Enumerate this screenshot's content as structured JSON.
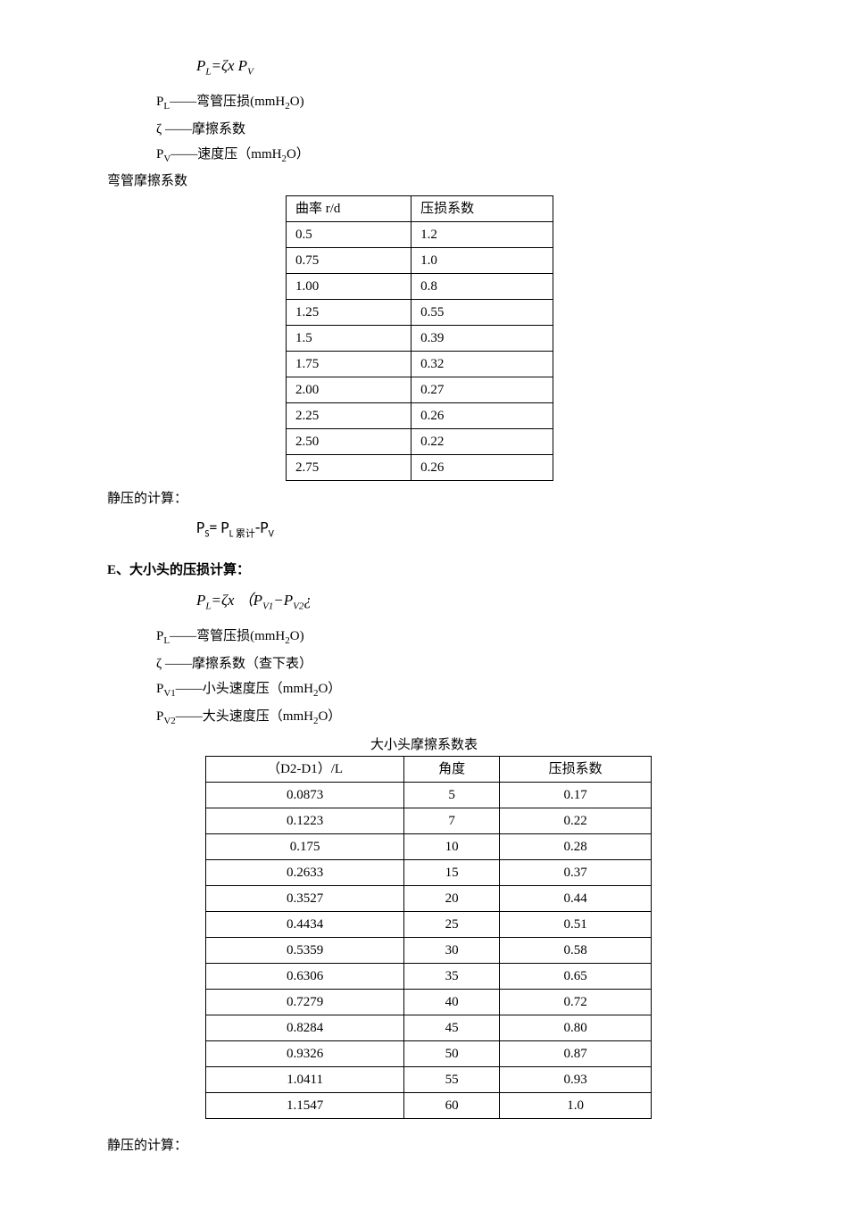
{
  "formula1": "P",
  "formula1_sub1": "L",
  "formula1_eq": "=ζx P",
  "formula1_sub2": "V",
  "def1_sym": "P",
  "def1_sub": "L",
  "def1_text": "——弯管压损(mmH",
  "def1_sub2": "2",
  "def1_text2": "O)",
  "def2": "ζ ——摩擦系数",
  "def3_sym": "P",
  "def3_sub": "V",
  "def3_text": "——速度压（mmH",
  "def3_sub2": "2",
  "def3_text2": "O）",
  "table1_label": "弯管摩擦系数",
  "table1": {
    "headers": [
      "曲率 r/d",
      "压损系数"
    ],
    "rows": [
      [
        "0.5",
        "1.2"
      ],
      [
        "0.75",
        "1.0"
      ],
      [
        "1.00",
        "0.8"
      ],
      [
        "1.25",
        "0.55"
      ],
      [
        "1.5",
        "0.39"
      ],
      [
        "1.75",
        "0.32"
      ],
      [
        "2.00",
        "0.27"
      ],
      [
        "2.25",
        "0.26"
      ],
      [
        "2.50",
        "0.22"
      ],
      [
        "2.75",
        "0.26"
      ]
    ]
  },
  "static_label": "静压的计算：",
  "static_formula_p1": "P",
  "static_formula_s1": "S",
  "static_formula_eq": "= P",
  "static_formula_s2": "L 累计",
  "static_formula_minus": "-P",
  "static_formula_s3": "V",
  "section_e": "E、大小头的压损计算：",
  "formula2_p1": "P",
  "formula2_sub1": "L",
  "formula2_eq": "=ζx （P",
  "formula2_sub2": "V1",
  "formula2_minus": "−P",
  "formula2_sub3": "V2",
  "formula2_end": "¿",
  "def_e1_sym": "P",
  "def_e1_sub": "L",
  "def_e1_text": "——弯管压损(mmH",
  "def_e1_sub2": "2",
  "def_e1_text2": "O)",
  "def_e2": "ζ ——摩擦系数（查下表）",
  "def_e3_sym": "P",
  "def_e3_sub": "V1",
  "def_e3_text": "——小头速度压（mmH",
  "def_e3_sub2": "2",
  "def_e3_text2": "O）",
  "def_e4_sym": "P",
  "def_e4_sub": "V2",
  "def_e4_text": "——大头速度压（mmH",
  "def_e4_sub2": "2",
  "def_e4_text2": "O）",
  "table2_title": "大小头摩擦系数表",
  "table2": {
    "headers": [
      "（D2-D1）/L",
      "角度",
      "压损系数"
    ],
    "rows": [
      [
        "0.0873",
        "5",
        "0.17"
      ],
      [
        "0.1223",
        "7",
        "0.22"
      ],
      [
        "0.175",
        "10",
        "0.28"
      ],
      [
        "0.2633",
        "15",
        "0.37"
      ],
      [
        "0.3527",
        "20",
        "0.44"
      ],
      [
        "0.4434",
        "25",
        "0.51"
      ],
      [
        "0.5359",
        "30",
        "0.58"
      ],
      [
        "0.6306",
        "35",
        "0.65"
      ],
      [
        "0.7279",
        "40",
        "0.72"
      ],
      [
        "0.8284",
        "45",
        "0.80"
      ],
      [
        "0.9326",
        "50",
        "0.87"
      ],
      [
        "1.0411",
        "55",
        "0.93"
      ],
      [
        "1.1547",
        "60",
        "1.0"
      ]
    ]
  },
  "bottom_text": "静压的计算："
}
